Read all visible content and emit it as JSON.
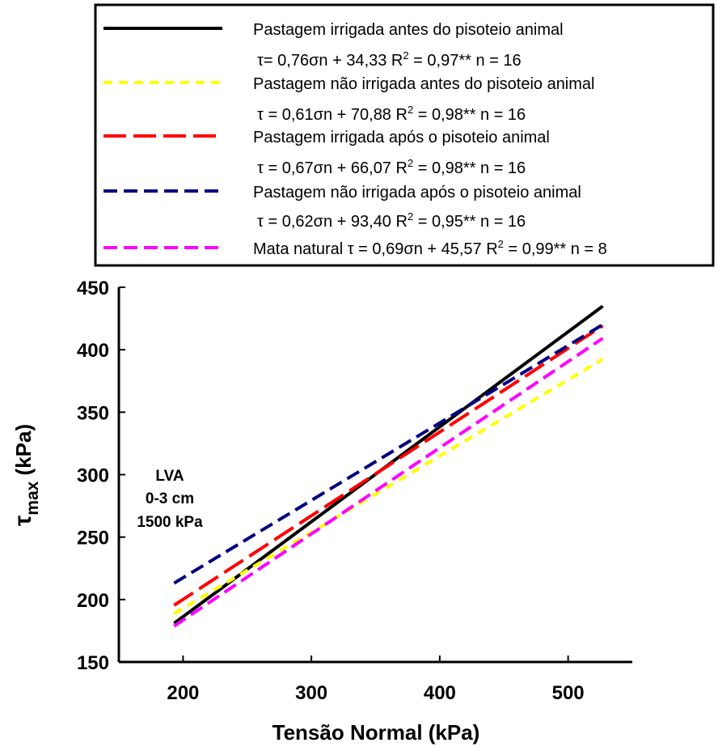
{
  "chart_data": {
    "type": "line",
    "xlabel": "Tensão Normal (kPa)",
    "ylabel_symbol": "τ",
    "ylabel_sub": "max",
    "ylabel_rest": " (kPa)",
    "xlim": [
      150,
      550
    ],
    "ylim": [
      150,
      450
    ],
    "xticks": [
      200,
      300,
      400,
      500
    ],
    "yticks": [
      150,
      200,
      250,
      300,
      350,
      400,
      450
    ],
    "grid": false,
    "legend_position": "top",
    "annotation": [
      "LVA",
      "0-3 cm",
      "1500 kPa"
    ],
    "series": [
      {
        "name": "Pastagem irrigada antes do pisoteio animal",
        "equation": "τ= 0,76σn + 34,33  R² = 0,97**  n = 16",
        "equation_parts": {
          "lhs": "τ= 0,76",
          "sigma": "σ",
          "mid": "n + 34,33  R",
          "sup": "2",
          "rest": " = 0,97**  n = 16"
        },
        "slope": 0.76,
        "intercept": 34.33,
        "x": [
          193,
          527
        ],
        "y": [
          181.0,
          434.9
        ],
        "color": "#000000",
        "dash": "solid"
      },
      {
        "name": "Pastagem não irrigada antes do pisoteio animal",
        "equation": "τ = 0,61σn + 70,88  R² = 0,98**  n = 16",
        "equation_parts": {
          "lhs": "τ = 0,61",
          "sigma": "σ",
          "mid": "n + 70,88  R",
          "sup": "2",
          "rest": " = 0,98**  n = 16"
        },
        "slope": 0.61,
        "intercept": 70.88,
        "x": [
          193,
          527
        ],
        "y": [
          188.6,
          392.4
        ],
        "color": "#FFFF00",
        "dash": "short"
      },
      {
        "name": "Pastagem irrigada após o pisoteio animal",
        "equation": "τ = 0,67σn + 66,07  R² = 0,98**  n = 16",
        "equation_parts": {
          "lhs": "τ = 0,67",
          "sigma": "σ",
          "mid": "n + 66,07  R",
          "sup": "2",
          "rest": " = 0,98**  n = 16"
        },
        "slope": 0.67,
        "intercept": 66.07,
        "x": [
          193,
          527
        ],
        "y": [
          195.4,
          419.2
        ],
        "color": "#FF0000",
        "dash": "long"
      },
      {
        "name": "Pastagem não irrigada após o pisoteio animal",
        "equation": "τ = 0,62σn + 93,40  R² = 0,95**  n = 16",
        "equation_parts": {
          "lhs": "τ = 0,62",
          "sigma": "σ",
          "mid": "n + 93,40  R",
          "sup": "2",
          "rest": " = 0,95**  n = 16"
        },
        "slope": 0.62,
        "intercept": 93.4,
        "x": [
          193,
          527
        ],
        "y": [
          213.1,
          420.1
        ],
        "color": "#000080",
        "dash": "medium"
      },
      {
        "name": "Mata natural",
        "equation": "τ = 0,69σn + 45,57  R² = 0,99**  n = 8",
        "equation_parts": {
          "lhs": "Mata natural τ = 0,69",
          "sigma": "σ",
          "mid": "n + 45,57  R",
          "sup": "2",
          "rest": " = 0,99**  n = 8"
        },
        "slope": 0.69,
        "intercept": 45.57,
        "x": [
          193,
          527
        ],
        "y": [
          178.7,
          409.2
        ],
        "color": "#FF00FF",
        "dash": "medium"
      }
    ]
  }
}
